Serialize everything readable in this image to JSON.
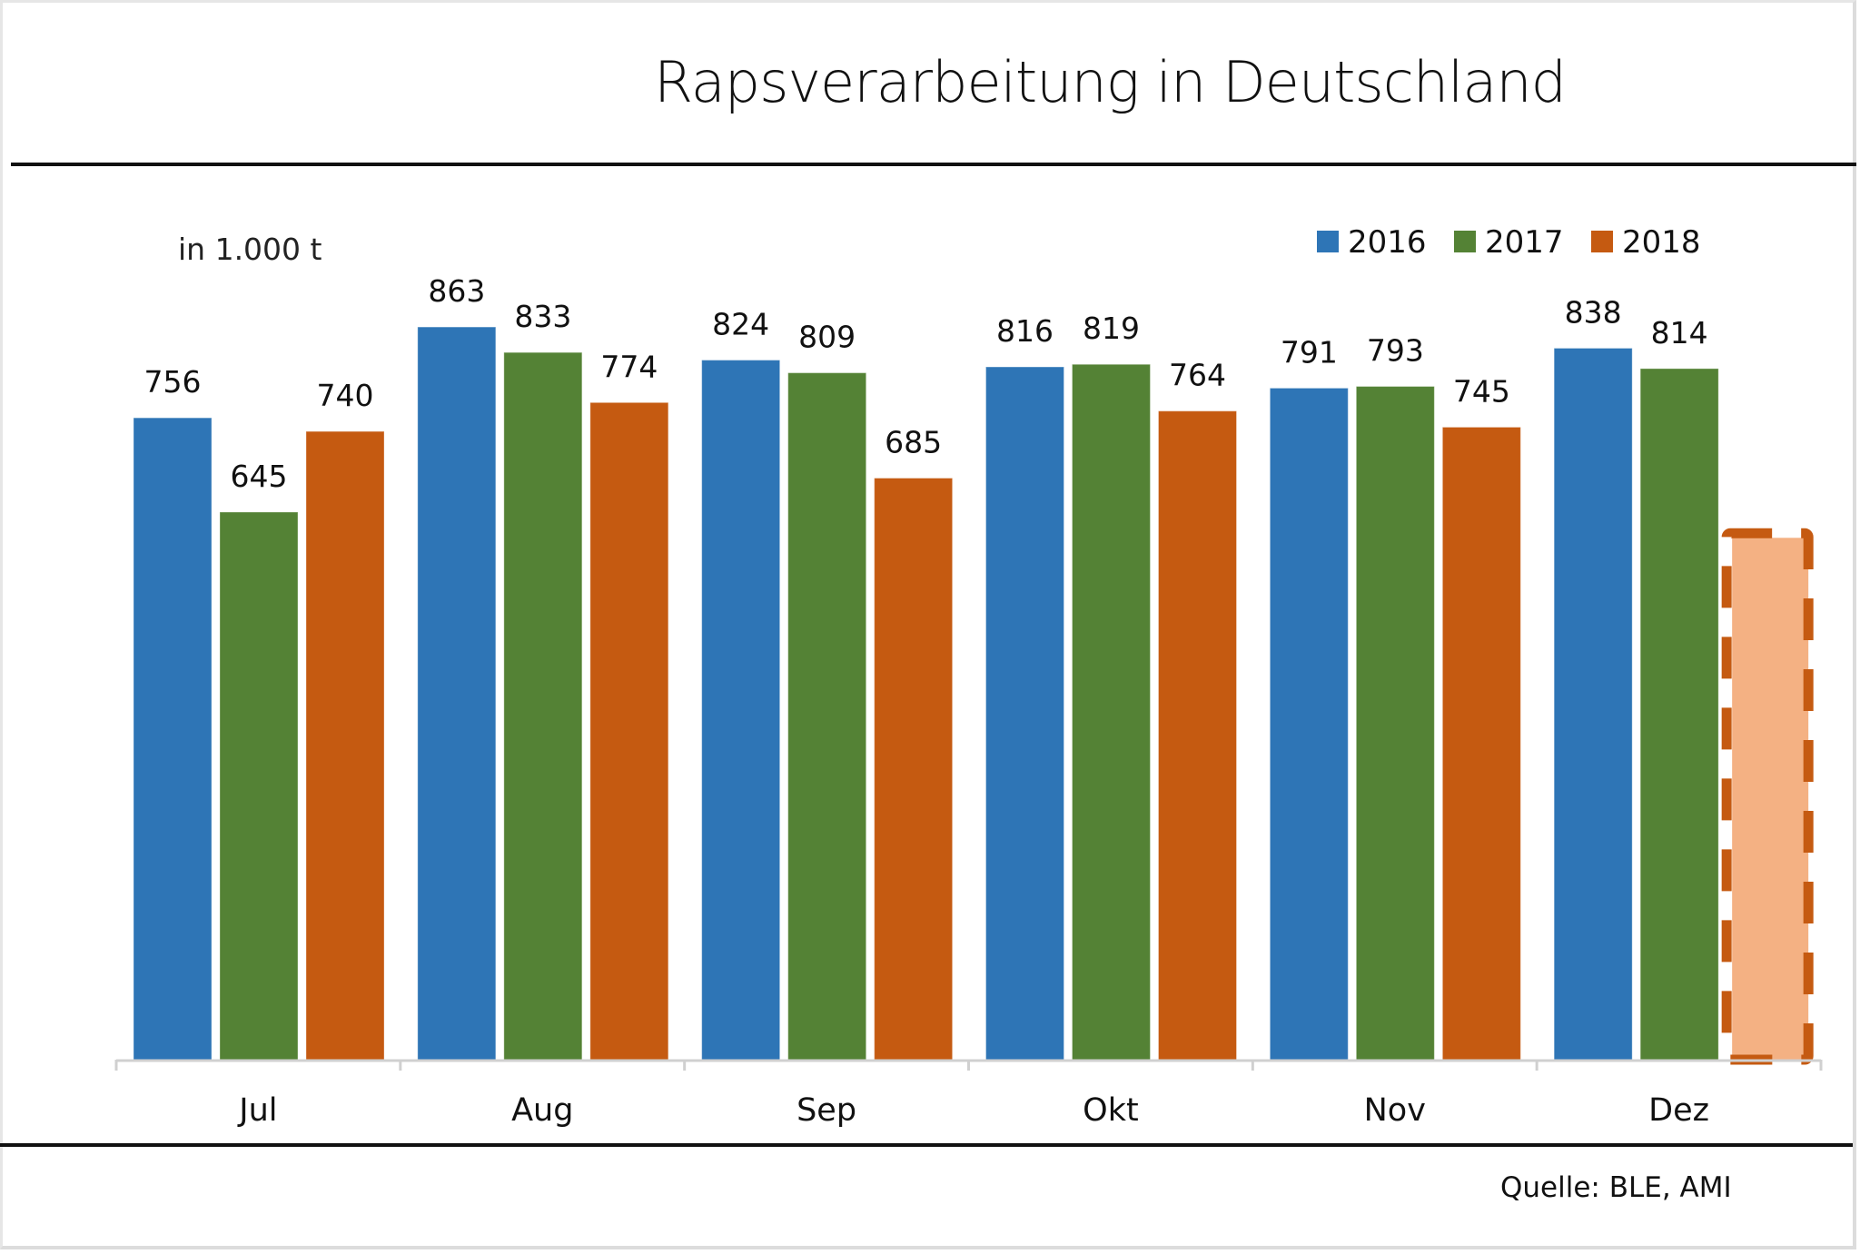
{
  "chart_data": {
    "type": "bar",
    "title": "Rapsverarbeitung  in Deutschland",
    "unit_label": "in 1.000 t",
    "source": "Quelle: BLE, AMI",
    "xlabel": "",
    "ylabel": "in 1.000 t",
    "ylim": [
      0,
      1000
    ],
    "grid": false,
    "legend_position": "top-right",
    "categories": [
      "Jul",
      "Aug",
      "Sep",
      "Okt",
      "Nov",
      "Dez"
    ],
    "series": [
      {
        "name": "2016",
        "color": "#2E75B6",
        "values": [
          756,
          863,
          824,
          816,
          791,
          838
        ]
      },
      {
        "name": "2017",
        "color": "#548235",
        "values": [
          645,
          833,
          809,
          819,
          793,
          814
        ]
      },
      {
        "name": "2018",
        "color": "#C55A11",
        "values": [
          740,
          774,
          685,
          764,
          745,
          null
        ]
      }
    ],
    "placeholder": {
      "series": "2018",
      "category": "Dez",
      "estimated_value": 620,
      "labeled": false,
      "style": "dashed outline, light fill",
      "fill_color": "#F4B183",
      "outline_color": "#C55A11"
    }
  }
}
